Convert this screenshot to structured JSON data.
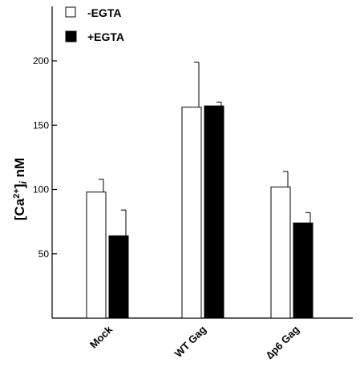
{
  "chart_data": {
    "type": "bar",
    "categories": [
      "Mock",
      "WT Gag",
      "∆p6 Gag"
    ],
    "series": [
      {
        "name": "-EGTA",
        "values": [
          98,
          164,
          102
        ],
        "errors": [
          10,
          35,
          12
        ],
        "color": "#ffffff"
      },
      {
        "name": "+EGTA",
        "values": [
          64,
          165,
          74
        ],
        "errors": [
          20,
          3,
          8
        ],
        "color": "#000000"
      }
    ],
    "ylabel_main": "[Ca",
    "ylabel_sup": "2+",
    "ylabel_close": "]",
    "ylabel_sub": "i",
    "ylabel_unit": " nM",
    "yticks": [
      "50",
      "100",
      "150",
      "200"
    ],
    "ytick_values": [
      50,
      100,
      150,
      200
    ],
    "ylim": [
      0,
      250
    ],
    "legend_position": "top-left",
    "grid": false
  }
}
